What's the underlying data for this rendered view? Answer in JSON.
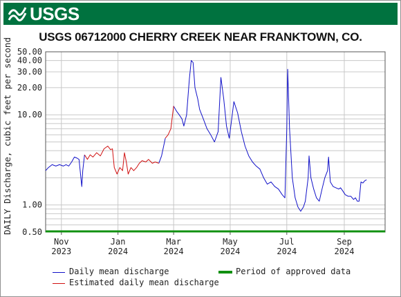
{
  "header": {
    "logo_text": "USGS"
  },
  "colors": {
    "banner": "#00723f",
    "daily": "#1010c8",
    "estimated": "#d01010",
    "approved": "#109010",
    "grid": "#c8c8c8"
  },
  "chart_data": {
    "type": "line",
    "title": "USGS 06712000 CHERRY CREEK NEAR FRANKTOWN, CO.",
    "ylabel": "DAILY Discharge, cubic feet per second",
    "yscale": "log",
    "ylim": [
      0.5,
      50
    ],
    "yticks": [
      "50.00",
      "40.00",
      "30.00",
      "20.00",
      "10.00",
      "1.00",
      "0.50"
    ],
    "xlim": [
      "2023-10-15",
      "2024-10-15"
    ],
    "xticks": [
      {
        "month": "Nov",
        "year": "2023",
        "date": "2023-11-01"
      },
      {
        "month": "Jan",
        "year": "2024",
        "date": "2024-01-01"
      },
      {
        "month": "Mar",
        "year": "2024",
        "date": "2024-03-01"
      },
      {
        "month": "May",
        "year": "2024",
        "date": "2024-05-01"
      },
      {
        "month": "Jul",
        "year": "2024",
        "date": "2024-07-01"
      },
      {
        "month": "Sep",
        "year": "2024",
        "date": "2024-09-01"
      }
    ],
    "grid": true,
    "legend_position": "bottom",
    "series": [
      {
        "name": "Daily mean discharge",
        "segments": [
          [
            [
              "2023-10-15",
              2.4
            ],
            [
              "2023-10-18",
              2.6
            ],
            [
              "2023-10-22",
              2.8
            ],
            [
              "2023-10-26",
              2.7
            ],
            [
              "2023-10-30",
              2.8
            ],
            [
              "2023-11-03",
              2.7
            ],
            [
              "2023-11-06",
              2.8
            ],
            [
              "2023-11-09",
              2.7
            ],
            [
              "2023-11-12",
              3.0
            ],
            [
              "2023-11-15",
              3.4
            ],
            [
              "2023-11-18",
              3.3
            ],
            [
              "2023-11-20",
              3.2
            ],
            [
              "2023-11-22",
              2.0
            ],
            [
              "2023-11-23",
              1.6
            ],
            [
              "2023-11-24",
              2.4
            ],
            [
              "2023-11-26",
              3.6
            ]
          ],
          [
            [
              "2024-02-14",
              2.9
            ],
            [
              "2024-02-17",
              3.5
            ],
            [
              "2024-02-21",
              5.5
            ]
          ],
          [
            [
              "2024-03-01",
              12.5
            ],
            [
              "2024-03-04",
              11.0
            ],
            [
              "2024-03-07",
              10.0
            ],
            [
              "2024-03-10",
              9.0
            ],
            [
              "2024-03-12",
              7.5
            ],
            [
              "2024-03-15",
              10.0
            ],
            [
              "2024-03-18",
              25.0
            ],
            [
              "2024-03-20",
              40.0
            ],
            [
              "2024-03-22",
              38.0
            ],
            [
              "2024-03-24",
              20.0
            ],
            [
              "2024-03-27",
              15.0
            ],
            [
              "2024-03-29",
              11.5
            ],
            [
              "2024-04-02",
              9.0
            ],
            [
              "2024-04-06",
              7.0
            ],
            [
              "2024-04-10",
              6.0
            ],
            [
              "2024-04-14",
              5.0
            ],
            [
              "2024-04-18",
              6.5
            ],
            [
              "2024-04-21",
              26.0
            ],
            [
              "2024-04-24",
              15.0
            ],
            [
              "2024-04-27",
              7.5
            ],
            [
              "2024-04-30",
              5.5
            ],
            [
              "2024-05-02",
              8.0
            ],
            [
              "2024-05-05",
              14.0
            ],
            [
              "2024-05-09",
              10.5
            ],
            [
              "2024-05-13",
              6.5
            ],
            [
              "2024-05-17",
              4.5
            ],
            [
              "2024-05-21",
              3.5
            ],
            [
              "2024-05-25",
              3.0
            ],
            [
              "2024-05-29",
              2.7
            ],
            [
              "2024-06-02",
              2.5
            ],
            [
              "2024-06-06",
              2.0
            ],
            [
              "2024-06-10",
              1.7
            ],
            [
              "2024-06-14",
              1.8
            ],
            [
              "2024-06-18",
              1.6
            ],
            [
              "2024-06-22",
              1.5
            ],
            [
              "2024-06-26",
              1.3
            ],
            [
              "2024-06-29",
              1.2
            ],
            [
              "2024-07-01",
              7.0
            ],
            [
              "2024-07-02",
              32.0
            ],
            [
              "2024-07-04",
              7.0
            ],
            [
              "2024-07-07",
              2.0
            ],
            [
              "2024-07-10",
              1.2
            ],
            [
              "2024-07-13",
              0.95
            ],
            [
              "2024-07-16",
              0.85
            ],
            [
              "2024-07-19",
              0.95
            ],
            [
              "2024-07-21",
              1.1
            ],
            [
              "2024-07-24",
              2.0
            ],
            [
              "2024-07-25",
              3.5
            ],
            [
              "2024-07-27",
              2.0
            ],
            [
              "2024-07-30",
              1.5
            ],
            [
              "2024-08-02",
              1.2
            ],
            [
              "2024-08-05",
              1.1
            ],
            [
              "2024-08-08",
              1.5
            ],
            [
              "2024-08-11",
              2.0
            ],
            [
              "2024-08-14",
              2.4
            ],
            [
              "2024-08-15",
              3.4
            ],
            [
              "2024-08-17",
              1.8
            ],
            [
              "2024-08-20",
              1.6
            ],
            [
              "2024-08-23",
              1.55
            ],
            [
              "2024-08-26",
              1.5
            ],
            [
              "2024-08-28",
              1.55
            ],
            [
              "2024-08-30",
              1.45
            ],
            [
              "2024-09-02",
              1.3
            ],
            [
              "2024-09-05",
              1.25
            ],
            [
              "2024-09-08",
              1.25
            ],
            [
              "2024-09-11",
              1.15
            ],
            [
              "2024-09-13",
              1.2
            ],
            [
              "2024-09-15",
              1.1
            ],
            [
              "2024-09-17",
              1.1
            ],
            [
              "2024-09-19",
              1.8
            ],
            [
              "2024-09-21",
              1.75
            ],
            [
              "2024-09-23",
              1.85
            ],
            [
              "2024-09-25",
              1.9
            ]
          ]
        ]
      },
      {
        "name": "Estimated daily mean discharge",
        "segments": [
          [
            [
              "2023-11-26",
              3.6
            ],
            [
              "2023-11-29",
              3.2
            ],
            [
              "2023-12-02",
              3.6
            ],
            [
              "2023-12-05",
              3.4
            ],
            [
              "2023-12-09",
              3.8
            ],
            [
              "2023-12-13",
              3.5
            ],
            [
              "2023-12-17",
              4.2
            ],
            [
              "2023-12-21",
              4.5
            ],
            [
              "2023-12-24",
              4.1
            ],
            [
              "2023-12-26",
              4.2
            ],
            [
              "2023-12-28",
              2.6
            ],
            [
              "2023-12-31",
              2.2
            ],
            [
              "2024-01-03",
              2.6
            ],
            [
              "2024-01-06",
              2.4
            ],
            [
              "2024-01-08",
              3.8
            ],
            [
              "2024-01-10",
              3.0
            ],
            [
              "2024-01-12",
              2.2
            ],
            [
              "2024-01-15",
              2.6
            ],
            [
              "2024-01-18",
              2.4
            ],
            [
              "2024-01-21",
              2.6
            ],
            [
              "2024-01-24",
              2.9
            ],
            [
              "2024-01-27",
              3.1
            ],
            [
              "2024-01-31",
              3.0
            ],
            [
              "2024-02-03",
              3.2
            ],
            [
              "2024-02-07",
              2.9
            ],
            [
              "2024-02-10",
              3.0
            ],
            [
              "2024-02-14",
              2.9
            ]
          ],
          [
            [
              "2024-02-21",
              5.5
            ],
            [
              "2024-02-24",
              6.0
            ],
            [
              "2024-02-27",
              7.0
            ],
            [
              "2024-03-01",
              12.5
            ]
          ]
        ]
      },
      {
        "name": "Period of approved data",
        "segments": []
      }
    ]
  },
  "legend": {
    "daily": "Daily mean discharge",
    "estimated": "Estimated daily mean discharge",
    "approved": "Period of approved data"
  }
}
